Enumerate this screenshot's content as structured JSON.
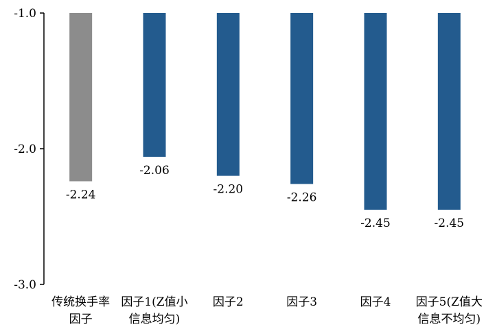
{
  "colors": {
    "highlight": "#8c8c8c",
    "primary": "#235b8e",
    "axis": "#000000"
  },
  "chart_data": {
    "type": "bar",
    "title": "",
    "xlabel": "",
    "ylabel": "",
    "ylim": [
      -3.0,
      -1.0
    ],
    "yticks": [
      -1.0,
      -2.0,
      -3.0
    ],
    "ytick_labels": [
      "-1.0",
      "-2.0",
      "-3.0"
    ],
    "grid": false,
    "legend": "none",
    "categories": [
      [
        "传统换手率",
        "因子"
      ],
      [
        "因子1(Z值小",
        "信息均匀)"
      ],
      [
        "因子2"
      ],
      [
        "因子3"
      ],
      [
        "因子4"
      ],
      [
        "因子5(Z值大",
        "信息不均匀)"
      ]
    ],
    "values": [
      -2.24,
      -2.06,
      -2.2,
      -2.26,
      -2.45,
      -2.45
    ],
    "value_labels": [
      "-2.24",
      "-2.06",
      "-2.20",
      "-2.26",
      "-2.45",
      "-2.45"
    ],
    "bar_colors": [
      "#8c8c8c",
      "#235b8e",
      "#235b8e",
      "#235b8e",
      "#235b8e",
      "#235b8e"
    ]
  }
}
